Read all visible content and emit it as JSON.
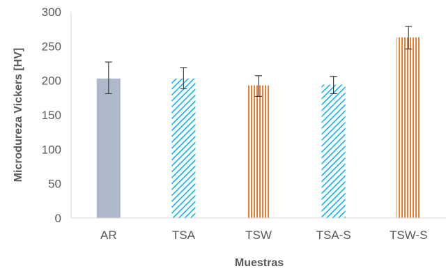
{
  "chart_data": {
    "type": "bar",
    "title": "",
    "xlabel": "Muestras",
    "ylabel": "Microdureza Vickers [HV]",
    "ylim": [
      0,
      300
    ],
    "ytick_step": 50,
    "yticks": [
      "0",
      "50",
      "100",
      "150",
      "200",
      "250",
      "300"
    ],
    "grid": false,
    "categories": [
      "AR",
      "TSA",
      "TSW",
      "TSA-S",
      "TSW-S"
    ],
    "values": [
      203,
      203,
      193,
      194,
      263
    ],
    "error_low": [
      181,
      188,
      177,
      181,
      246
    ],
    "error_high": [
      227,
      219,
      207,
      206,
      279
    ],
    "bar_styles": [
      "solid",
      "diagonal-hatch",
      "vertical-lines",
      "diagonal-hatch",
      "vertical-lines"
    ],
    "colors": {
      "AR": "#adb9ca",
      "TSA": "#00b0f0",
      "TSW": "#ed7d31",
      "error_bar": "#404040",
      "axis": "#d9d9d9",
      "text": "#595959"
    }
  }
}
